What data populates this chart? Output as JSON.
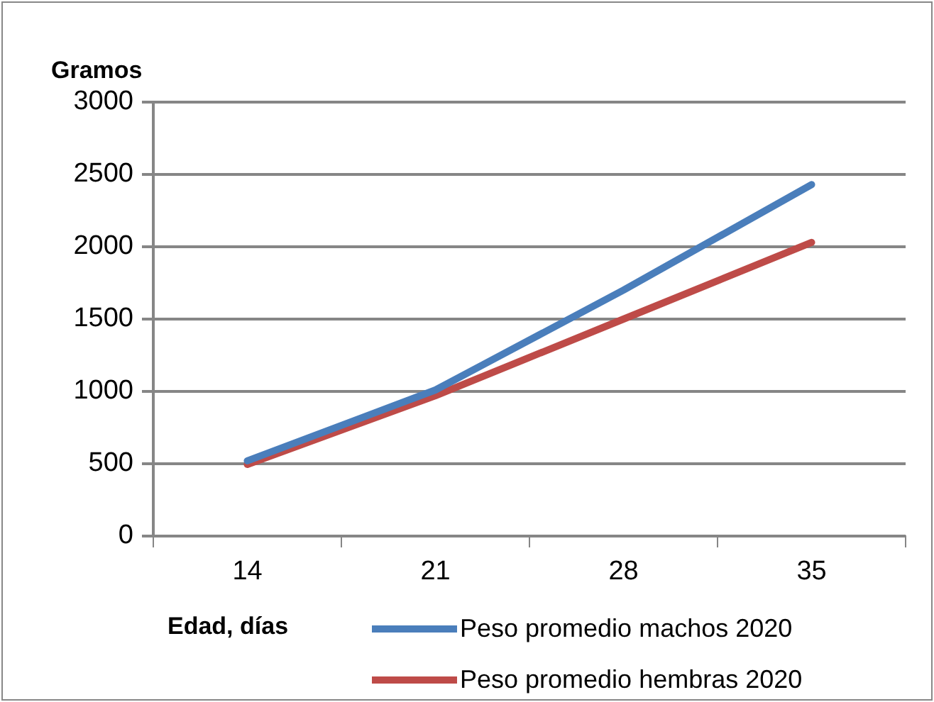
{
  "chart_data": {
    "type": "line",
    "ylabel": "Gramos",
    "xlabel": "Edad, días",
    "categories": [
      "14",
      "21",
      "28",
      "35"
    ],
    "series": [
      {
        "name": "Peso promedio machos 2020",
        "color": "#4a7ebb",
        "values": [
          520,
          1010,
          1700,
          2430
        ]
      },
      {
        "name": "Peso promedio hembras 2020",
        "color": "#be4b48",
        "values": [
          495,
          970,
          1500,
          2030
        ]
      }
    ],
    "ylim": [
      0,
      3000
    ],
    "yticks": [
      0,
      500,
      1000,
      1500,
      2000,
      2500,
      3000
    ],
    "grid": "y",
    "legend": "bottom right",
    "marker": "none",
    "line_style": "solid"
  }
}
